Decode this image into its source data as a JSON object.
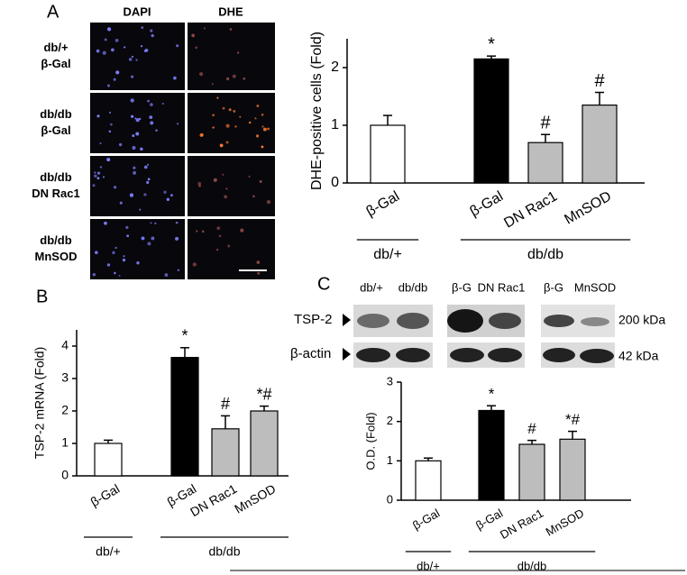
{
  "figure": {
    "panel_a": {
      "letter": "A",
      "columns": [
        "DAPI",
        "DHE"
      ],
      "rows": [
        [
          "db/+",
          "β-Gal"
        ],
        [
          "db/db",
          "β-Gal"
        ],
        [
          "db/db",
          "DN Rac1"
        ],
        [
          "db/db",
          "MnSOD"
        ]
      ]
    },
    "panel_b": {
      "letter": "B"
    },
    "panel_c": {
      "letter": "C",
      "lanes": [
        "db/+",
        "db/db",
        "β-G",
        "DN Rac1",
        "β-G",
        "MnSOD"
      ],
      "rows": [
        "TSP-2",
        "β-actin"
      ],
      "sizes": [
        "200 kDa",
        "42 kDa"
      ]
    }
  },
  "chart_data": [
    {
      "type": "bar",
      "ylabel": "DHE-positive cells (Fold)",
      "categories": [
        "β-Gal",
        "β-Gal",
        "DN Rac1",
        "MnSOD"
      ],
      "values": [
        1.0,
        2.15,
        0.7,
        1.35
      ],
      "errors": [
        0.17,
        0.05,
        0.14,
        0.22
      ],
      "colors": [
        "#ffffff",
        "#000000",
        "#bdbdbd",
        "#bdbdbd"
      ],
      "markers": [
        null,
        "*",
        "#",
        "#"
      ],
      "groups": [
        "db/+",
        "db/db"
      ],
      "ylim": [
        0,
        2.5
      ],
      "yticks": [
        0,
        1,
        2
      ]
    },
    {
      "type": "bar",
      "ylabel": "TSP-2 mRNA (Fold)",
      "categories": [
        "β-Gal",
        "β-Gal",
        "DN Rac1",
        "MnSOD"
      ],
      "values": [
        1.0,
        3.65,
        1.45,
        2.0
      ],
      "errors": [
        0.1,
        0.3,
        0.4,
        0.15
      ],
      "colors": [
        "#ffffff",
        "#000000",
        "#bdbdbd",
        "#bdbdbd"
      ],
      "markers": [
        null,
        "*",
        "#",
        "*#"
      ],
      "groups": [
        "db/+",
        "db/db"
      ],
      "ylim": [
        0,
        4.5
      ],
      "yticks": [
        0,
        1,
        2,
        3,
        4
      ]
    },
    {
      "type": "bar",
      "ylabel": "O.D. (Fold)",
      "categories": [
        "β-Gal",
        "β-Gal",
        "DN Rac1",
        "MnSOD"
      ],
      "values": [
        1.0,
        2.28,
        1.42,
        1.55
      ],
      "errors": [
        0.07,
        0.12,
        0.1,
        0.2
      ],
      "colors": [
        "#ffffff",
        "#000000",
        "#bdbdbd",
        "#bdbdbd"
      ],
      "markers": [
        null,
        "*",
        "#",
        "*#"
      ],
      "groups": [
        "db/+",
        "db/db"
      ],
      "ylim": [
        0,
        3
      ],
      "yticks": [
        0,
        1,
        2,
        3
      ]
    }
  ]
}
